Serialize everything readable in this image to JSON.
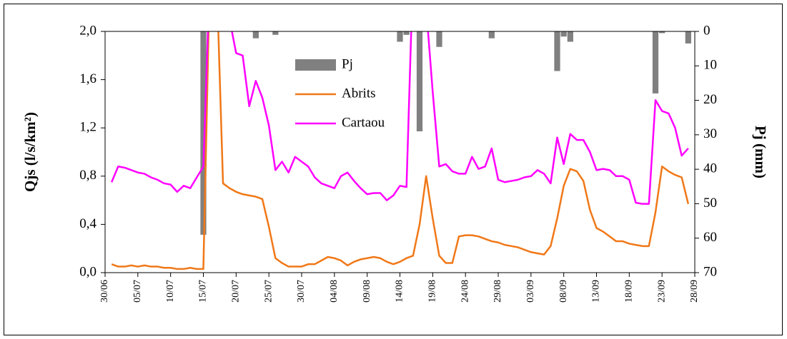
{
  "chart_data": {
    "type": "line",
    "y_title": "Qjs (l/s/km²)",
    "y2_title": "Pj (mm)",
    "categories": [
      "30/06",
      null,
      null,
      null,
      null,
      "05/07",
      null,
      null,
      null,
      null,
      "10/07",
      null,
      null,
      null,
      null,
      "15/07",
      null,
      null,
      null,
      null,
      "20/07",
      null,
      null,
      null,
      null,
      "25/07",
      null,
      null,
      null,
      null,
      "30/07",
      null,
      null,
      null,
      null,
      "04/08",
      null,
      null,
      null,
      null,
      "09/08",
      null,
      null,
      null,
      null,
      "14/08",
      null,
      null,
      null,
      null,
      "19/08",
      null,
      null,
      null,
      null,
      "24/08",
      null,
      null,
      null,
      null,
      "29/08",
      null,
      null,
      null,
      null,
      "03/09",
      null,
      null,
      null,
      null,
      "08/09",
      null,
      null,
      null,
      null,
      "13/09",
      null,
      null,
      null,
      null,
      "18/09",
      null,
      null,
      null,
      null,
      "23/09",
      null,
      null,
      null,
      null,
      "28/09"
    ],
    "ylim": [
      0,
      2
    ],
    "yticks": [
      {
        "value": 0,
        "label": "0,0"
      },
      {
        "value": 0.4,
        "label": "0,4"
      },
      {
        "value": 0.8,
        "label": "0,8"
      },
      {
        "value": 1.2,
        "label": "1,2"
      },
      {
        "value": 1.6,
        "label": "1,6"
      },
      {
        "value": 2,
        "label": "2,0"
      }
    ],
    "y2lim": [
      70,
      0
    ],
    "y2ticks": [
      0,
      10,
      20,
      30,
      40,
      50,
      60,
      70
    ],
    "legend": "upper-center",
    "series": [
      {
        "name": "Pj",
        "type": "bar",
        "axis": "y2",
        "color": "#808080",
        "values": [
          null,
          null,
          null,
          null,
          null,
          null,
          null,
          null,
          null,
          null,
          null,
          null,
          null,
          null,
          null,
          59,
          null,
          null,
          null,
          null,
          null,
          null,
          null,
          2,
          null,
          null,
          1,
          null,
          null,
          null,
          null,
          null,
          null,
          null,
          null,
          null,
          null,
          null,
          null,
          null,
          null,
          null,
          null,
          null,
          null,
          3,
          1,
          null,
          29,
          null,
          null,
          4.5,
          null,
          null,
          null,
          null,
          null,
          null,
          null,
          2,
          null,
          null,
          null,
          null,
          null,
          null,
          null,
          null,
          null,
          11.5,
          1.5,
          3,
          null,
          null,
          null,
          null,
          null,
          null,
          null,
          null,
          null,
          null,
          null,
          null,
          18,
          0.5,
          null,
          null,
          null,
          3.5,
          null
        ]
      },
      {
        "name": "Abrits",
        "color": "#f07818",
        "values": [
          null,
          0.07,
          0.05,
          0.05,
          0.06,
          0.05,
          0.06,
          0.05,
          0.05,
          0.04,
          0.04,
          0.03,
          0.03,
          0.04,
          0.03,
          0.03,
          2.5,
          2.5,
          0.74,
          0.7,
          0.67,
          0.65,
          0.64,
          0.63,
          0.61,
          0.38,
          0.12,
          0.08,
          0.05,
          0.05,
          0.05,
          0.07,
          0.07,
          0.1,
          0.13,
          0.12,
          0.1,
          0.06,
          0.09,
          0.11,
          0.12,
          0.13,
          0.12,
          0.09,
          0.07,
          0.09,
          0.12,
          0.14,
          0.4,
          0.8,
          0.45,
          0.14,
          0.08,
          0.08,
          0.3,
          0.31,
          0.31,
          0.3,
          0.28,
          0.26,
          0.25,
          0.23,
          0.22,
          0.21,
          0.19,
          0.17,
          0.16,
          0.15,
          0.22,
          0.45,
          0.72,
          0.86,
          0.84,
          0.76,
          0.52,
          0.37,
          0.34,
          0.3,
          0.26,
          0.26,
          0.24,
          0.23,
          0.22,
          0.22,
          0.5,
          0.88,
          0.84,
          0.81,
          0.79,
          0.57,
          null
        ]
      },
      {
        "name": "Cartaou",
        "color": "#ff00ff",
        "values": [
          null,
          0.75,
          0.88,
          0.87,
          0.85,
          0.83,
          0.82,
          0.79,
          0.77,
          0.74,
          0.73,
          0.67,
          0.72,
          0.7,
          0.79,
          0.88,
          2.5,
          2.5,
          2.5,
          2.1,
          1.82,
          1.8,
          1.38,
          1.59,
          1.45,
          1.22,
          0.85,
          0.92,
          0.83,
          0.96,
          0.92,
          0.88,
          0.79,
          0.74,
          0.72,
          0.7,
          0.8,
          0.83,
          0.76,
          0.7,
          0.65,
          0.66,
          0.66,
          0.6,
          0.64,
          0.72,
          0.71,
          2.5,
          2.5,
          2.2,
          1.5,
          0.88,
          0.9,
          0.84,
          0.82,
          0.82,
          0.96,
          0.86,
          0.88,
          1.03,
          0.77,
          0.75,
          0.76,
          0.77,
          0.79,
          0.8,
          0.85,
          0.82,
          0.74,
          1.12,
          0.9,
          1.15,
          1.1,
          1.1,
          1.0,
          0.85,
          0.86,
          0.85,
          0.8,
          0.8,
          0.77,
          0.58,
          0.57,
          0.57,
          1.43,
          1.34,
          1.32,
          1.2,
          0.97,
          1.03,
          null
        ]
      }
    ]
  }
}
